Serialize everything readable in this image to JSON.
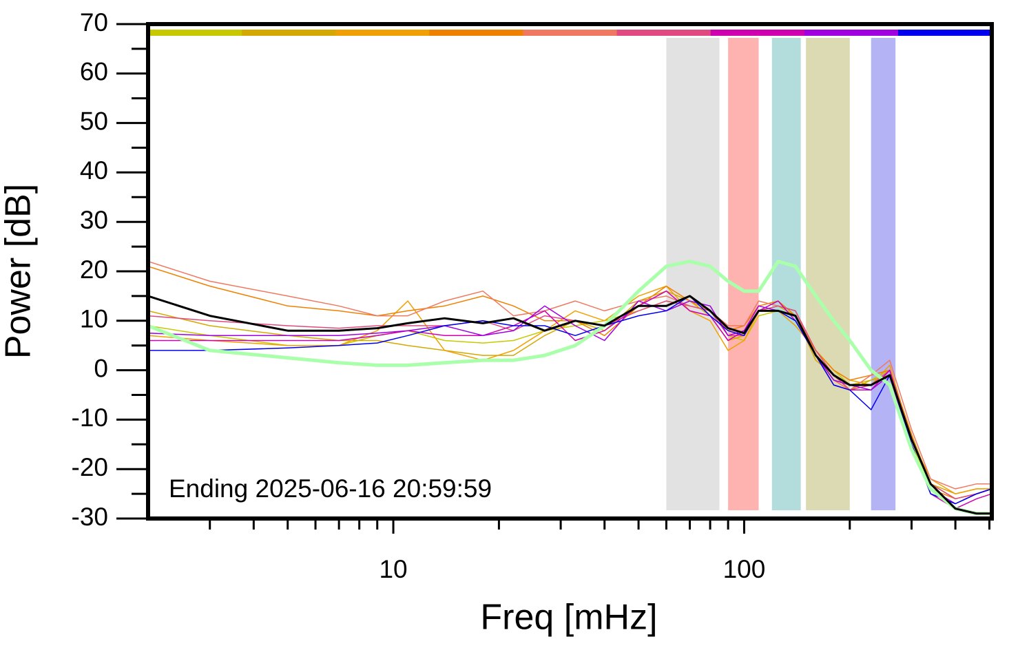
{
  "chart_data": {
    "type": "line",
    "x_label": "Freq [mHz]",
    "y_label": "Power [dB]",
    "annotation": "Ending 2025-06-16 20:59:59",
    "x_scale": "log",
    "xlim": [
      2,
      508
    ],
    "ylim": [
      -30,
      70
    ],
    "xticks": [
      10,
      100
    ],
    "x_minor_ticks": [
      3,
      4,
      5,
      6,
      7,
      8,
      9,
      20,
      30,
      40,
      50,
      60,
      70,
      80,
      90,
      200,
      300,
      400,
      500
    ],
    "yticks": [
      -30,
      -20,
      -10,
      0,
      10,
      20,
      30,
      40,
      50,
      60,
      70
    ],
    "y_minor_ticks": [
      -25,
      -15,
      -5,
      5,
      15,
      25,
      35,
      45,
      55,
      65
    ],
    "bands": [
      {
        "x": [
          60,
          85
        ],
        "color": "#e2e2e2"
      },
      {
        "x": [
          90,
          110
        ],
        "color": "#ffb3b0"
      },
      {
        "x": [
          120,
          145
        ],
        "color": "#b3dcdc"
      },
      {
        "x": [
          150,
          200
        ],
        "color": "#dcdab3"
      },
      {
        "x": [
          230,
          270
        ],
        "color": "#b3b3f5"
      }
    ],
    "x": [
      2,
      3,
      5,
      7,
      9,
      11,
      14,
      18,
      22,
      27,
      33,
      40,
      50,
      60,
      70,
      80,
      90,
      100,
      110,
      125,
      140,
      160,
      180,
      200,
      230,
      260,
      300,
      340,
      400,
      460,
      508
    ],
    "series": [
      {
        "color": "#c8c800",
        "width": 1.5,
        "values": [
          9,
          7,
          5,
          5,
          7,
          8,
          6,
          5.5,
          6,
          8,
          9,
          10,
          12,
          14,
          13,
          12,
          7,
          6,
          11,
          12,
          10,
          4,
          0,
          -3,
          -2,
          0,
          -15,
          -23,
          -26,
          -25,
          -24
        ]
      },
      {
        "color": "#d4a800",
        "width": 1.5,
        "values": [
          12,
          9,
          7,
          6,
          6,
          5,
          4,
          3,
          3,
          7,
          10,
          8,
          14,
          16,
          14,
          11,
          6,
          7,
          12,
          13,
          11,
          2,
          -1,
          -4,
          -2,
          -1,
          -13,
          -23,
          -25,
          -24,
          -24
        ]
      },
      {
        "color": "#f0a000",
        "width": 1.5,
        "values": [
          7,
          6,
          5,
          5,
          8,
          14,
          4,
          2,
          4,
          8,
          12,
          10,
          15,
          17,
          12,
          10,
          4,
          6,
          12,
          12,
          9,
          4,
          0,
          -2,
          -3,
          1,
          -14,
          -22,
          -25,
          -24,
          -24
        ]
      },
      {
        "color": "#f08000",
        "width": 1.5,
        "values": [
          21,
          17,
          13,
          12,
          11,
          12,
          13,
          15,
          13,
          10,
          10,
          7,
          13,
          17,
          14,
          12,
          8,
          9,
          13,
          14,
          11,
          4,
          0,
          -2,
          -1,
          0,
          -13,
          -24,
          -26,
          -25,
          -24
        ]
      },
      {
        "color": "#f07860",
        "width": 1.5,
        "values": [
          22,
          18,
          15,
          13,
          11,
          11,
          14,
          16,
          11,
          12,
          14,
          12,
          14,
          15,
          13,
          12,
          9,
          9,
          14,
          13,
          12,
          3,
          -2,
          -4,
          -1,
          2,
          -12,
          -22,
          -24,
          -23,
          -23
        ]
      },
      {
        "color": "#e04a80",
        "width": 1.5,
        "values": [
          11,
          10,
          9,
          8.5,
          9,
          9,
          9,
          10,
          8,
          11,
          10,
          9,
          12,
          14,
          13,
          12,
          7,
          7,
          12,
          13,
          12,
          4,
          -1,
          -4,
          -3,
          0,
          -14,
          -23,
          -26,
          -25,
          -24
        ]
      },
      {
        "color": "#d000b0",
        "width": 1.5,
        "values": [
          6,
          6,
          6,
          6,
          7,
          8,
          7,
          7,
          9,
          12,
          6,
          8,
          13,
          16,
          12,
          11,
          6,
          8,
          12,
          14,
          10,
          3,
          -3,
          -4,
          -4,
          0,
          -15,
          -25,
          -28,
          -26,
          -25
        ]
      },
      {
        "color": "#a000e0",
        "width": 1.5,
        "values": [
          7.5,
          7,
          7,
          7,
          7.5,
          8,
          9,
          7,
          8,
          13,
          9,
          6,
          14,
          12,
          14,
          13,
          7,
          8,
          13,
          12,
          11,
          3,
          -2,
          -3,
          -4,
          -1,
          -16,
          -24,
          -27,
          -25,
          -24
        ]
      },
      {
        "color": "#0000ee",
        "width": 1.5,
        "values": [
          4,
          4,
          4.5,
          5,
          5.5,
          7,
          9,
          10,
          9,
          9,
          7,
          9,
          11,
          12,
          15,
          11,
          8,
          7,
          12,
          12,
          10,
          3,
          -3,
          -4,
          -8,
          -1,
          -15,
          -25,
          -27,
          -25,
          -24
        ]
      },
      {
        "color": "#aaffaa",
        "width": 5,
        "values": [
          9,
          4,
          2.5,
          1.5,
          1,
          1,
          1.5,
          2,
          2,
          3,
          5,
          9,
          16,
          21,
          22,
          21,
          18,
          16,
          16,
          22,
          21,
          15,
          10,
          6,
          0,
          -3,
          -16,
          -24,
          -28,
          -29,
          -29
        ]
      },
      {
        "color": "#000000",
        "width": 3,
        "values": [
          15,
          11,
          8,
          8,
          8.5,
          9.5,
          10.5,
          9.5,
          10.5,
          8,
          10,
          9,
          13,
          13,
          15,
          12,
          8.5,
          7.5,
          12,
          12,
          11,
          3,
          -1,
          -3,
          -3,
          -1,
          -14,
          -23,
          -28,
          -29,
          -29
        ]
      }
    ],
    "top_bar_series": [
      0,
      1,
      2,
      3,
      4,
      5,
      6,
      7,
      8
    ]
  }
}
